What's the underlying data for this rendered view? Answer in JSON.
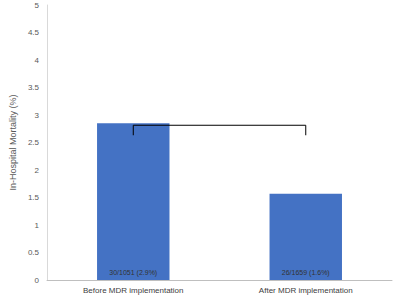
{
  "chart_data": {
    "type": "bar",
    "categories": [
      "Before MDR implementation",
      "After MDR implementation"
    ],
    "values": [
      2.85,
      1.57
    ],
    "value_labels": [
      "30/1051 (2.9%)",
      "26/1659 (1.6%)"
    ],
    "data_labels": true,
    "color": "#4472c4",
    "ylabel": "In-Hospital Mortality (%)",
    "ylim": [
      0,
      5
    ],
    "yticks": [
      0,
      0.5,
      1,
      1.5,
      2,
      2.5,
      3,
      3.5,
      4,
      4.5,
      5
    ],
    "grid": false
  }
}
